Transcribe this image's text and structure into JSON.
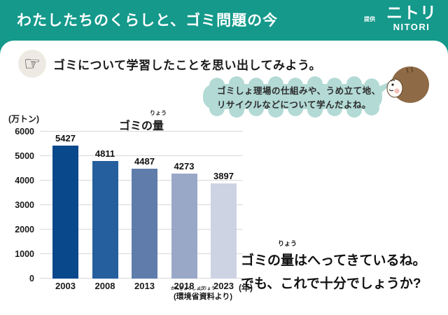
{
  "header": {
    "title": "わたしたちのくらしと、ゴミ問題の今",
    "provided_by": "提供",
    "logo_kana": "ニトリ",
    "logo_latin": "NITORI"
  },
  "icons": {
    "hand_glyph": "☞"
  },
  "prompt": {
    "text": "ゴミについて学習したことを思い出してみよう。"
  },
  "bubble": {
    "line1": "ゴミしょ理場の仕組みや、うめ立て地、",
    "line2": "リサイクルなどについて学んだよね。"
  },
  "chart_data": {
    "type": "bar",
    "title_prefix": "ゴミの",
    "title_ruby_base": "量",
    "title_ruby_rt": "りょう",
    "unit_label": "(万トン)",
    "categories": [
      "2003",
      "2008",
      "2013",
      "2018",
      "2023"
    ],
    "values": [
      5427,
      4811,
      4487,
      4273,
      3897
    ],
    "bar_colors": [
      "#0a488c",
      "#255f9e",
      "#5f7cab",
      "#9aa8c7",
      "#cdd3e3"
    ],
    "x_suffix": "(年)",
    "xlabel": "年",
    "ylabel": "万トン",
    "yticks": [
      0,
      1000,
      2000,
      3000,
      4000,
      5000,
      6000
    ],
    "ylim": [
      0,
      6000
    ],
    "grid": "horizontal",
    "source_prefix": "(",
    "source_ruby": [
      {
        "base": "環境省",
        "rt": "かんきょうしょう"
      },
      {
        "base": "資料",
        "rt": "しりょう"
      }
    ],
    "source_suffix": "より)"
  },
  "comment": {
    "line1_prefix": "ゴミの",
    "line1_ruby_base": "量",
    "line1_ruby_rt": "りょう",
    "line1_suffix": "はへってきているね。",
    "line2": "でも、これで十分でしょうか?"
  },
  "colors": {
    "header_teal": "#14998b",
    "bubble_teal": "#b3dad5",
    "hair_brown": "#8e6a46",
    "cheek_pink": "#f2c0ba"
  }
}
